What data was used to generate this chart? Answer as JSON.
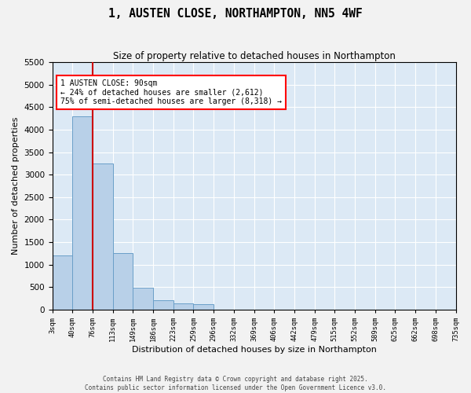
{
  "title": "1, AUSTEN CLOSE, NORTHAMPTON, NN5 4WF",
  "subtitle": "Size of property relative to detached houses in Northampton",
  "xlabel": "Distribution of detached houses by size in Northampton",
  "ylabel": "Number of detached properties",
  "annotation_line1": "1 AUSTEN CLOSE: 90sqm",
  "annotation_line2": "← 24% of detached houses are smaller (2,612)",
  "annotation_line3": "75% of semi-detached houses are larger (8,318) →",
  "red_line_bin_index": 2,
  "ylim": [
    0,
    5500
  ],
  "yticks": [
    0,
    500,
    1000,
    1500,
    2000,
    2500,
    3000,
    3500,
    4000,
    4500,
    5000,
    5500
  ],
  "bar_color": "#b8d0e8",
  "bar_edge_color": "#6a9fc8",
  "red_line_color": "#cc0000",
  "bg_color": "#dce9f5",
  "grid_color": "#ffffff",
  "footer1": "Contains HM Land Registry data © Crown copyright and database right 2025.",
  "footer2": "Contains public sector information licensed under the Open Government Licence v3.0.",
  "bin_labels": [
    "3sqm",
    "40sqm",
    "76sqm",
    "113sqm",
    "149sqm",
    "186sqm",
    "223sqm",
    "259sqm",
    "296sqm",
    "332sqm",
    "369sqm",
    "406sqm",
    "442sqm",
    "479sqm",
    "515sqm",
    "552sqm",
    "589sqm",
    "625sqm",
    "662sqm",
    "698sqm",
    "735sqm"
  ],
  "counts": [
    1200,
    4300,
    3250,
    1250,
    490,
    200,
    130,
    120,
    0,
    0,
    0,
    0,
    0,
    0,
    0,
    0,
    0,
    0,
    0,
    0
  ]
}
